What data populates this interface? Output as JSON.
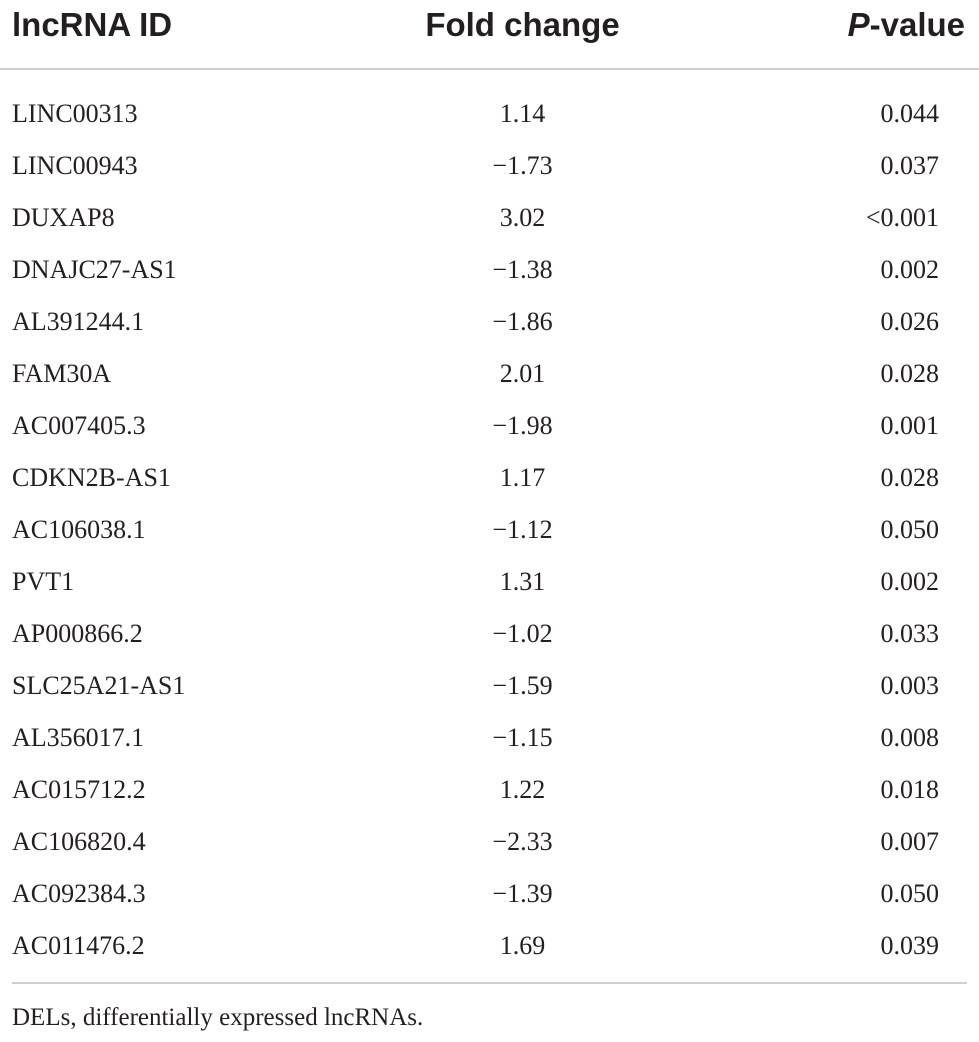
{
  "table": {
    "headers": {
      "id": "lncRNA ID",
      "fold_change": "Fold change",
      "p_italic": "P",
      "p_rest": "-value"
    },
    "rows": [
      {
        "id": "LINC00313",
        "fold_change": "1.14",
        "p_value": "0.044"
      },
      {
        "id": "LINC00943",
        "fold_change": "−1.73",
        "p_value": "0.037"
      },
      {
        "id": "DUXAP8",
        "fold_change": "3.02",
        "p_value": "<0.001"
      },
      {
        "id": "DNAJC27-AS1",
        "fold_change": "−1.38",
        "p_value": "0.002"
      },
      {
        "id": "AL391244.1",
        "fold_change": "−1.86",
        "p_value": "0.026"
      },
      {
        "id": "FAM30A",
        "fold_change": "2.01",
        "p_value": "0.028"
      },
      {
        "id": "AC007405.3",
        "fold_change": "−1.98",
        "p_value": "0.001"
      },
      {
        "id": "CDKN2B-AS1",
        "fold_change": "1.17",
        "p_value": "0.028"
      },
      {
        "id": "AC106038.1",
        "fold_change": "−1.12",
        "p_value": "0.050"
      },
      {
        "id": "PVT1",
        "fold_change": "1.31",
        "p_value": "0.002"
      },
      {
        "id": "AP000866.2",
        "fold_change": "−1.02",
        "p_value": "0.033"
      },
      {
        "id": "SLC25A21-AS1",
        "fold_change": "−1.59",
        "p_value": "0.003"
      },
      {
        "id": "AL356017.1",
        "fold_change": "−1.15",
        "p_value": "0.008"
      },
      {
        "id": "AC015712.2",
        "fold_change": "1.22",
        "p_value": "0.018"
      },
      {
        "id": "AC106820.4",
        "fold_change": "−2.33",
        "p_value": "0.007"
      },
      {
        "id": "AC092384.3",
        "fold_change": "−1.39",
        "p_value": "0.050"
      },
      {
        "id": "AC011476.2",
        "fold_change": "1.69",
        "p_value": "0.039"
      }
    ]
  },
  "footnote": "DELs, differentially expressed lncRNAs."
}
